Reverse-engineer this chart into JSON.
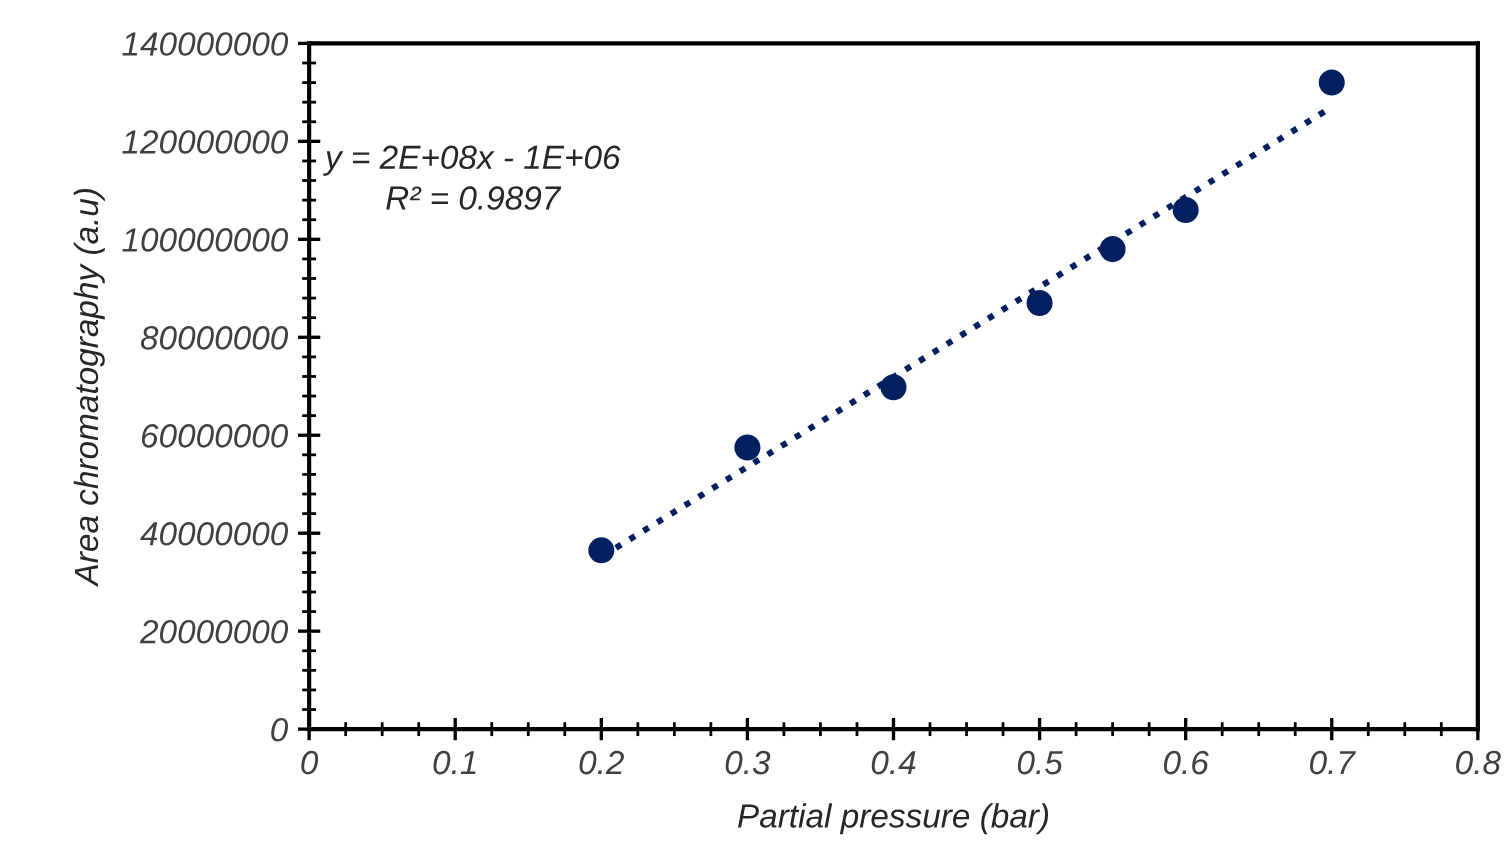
{
  "chart_data": {
    "type": "scatter",
    "xlabel": "Partial pressure (bar)",
    "ylabel": "Area chromatography (a.u)",
    "x": [
      0.2,
      0.3,
      0.4,
      0.5,
      0.55,
      0.6,
      0.7
    ],
    "series": [
      {
        "color": "#002060",
        "values": [
          36500000,
          57500000,
          69800000,
          87000000,
          98000000,
          106000000,
          132000000
        ]
      },
      {
        "type": "line",
        "color": "#002060",
        "x": [
          0.21,
          0.7
        ],
        "values": [
          37000000,
          127000000
        ],
        "line_style": "dotted",
        "marker": "none"
      }
    ],
    "marker": "circle",
    "annotations": [
      "y = 2E+08x - 1E+06\nR² = 0.9897"
    ],
    "xlim": [
      0,
      0.8
    ],
    "xticks": [
      0,
      0.1,
      0.2,
      0.3,
      0.4,
      0.5,
      0.6,
      0.7,
      0.8
    ],
    "ylim": [
      0,
      140000000
    ],
    "yticks": [
      0,
      20000000,
      40000000,
      60000000,
      80000000,
      100000000,
      120000000,
      140000000
    ],
    "grid": false,
    "legend": false
  }
}
